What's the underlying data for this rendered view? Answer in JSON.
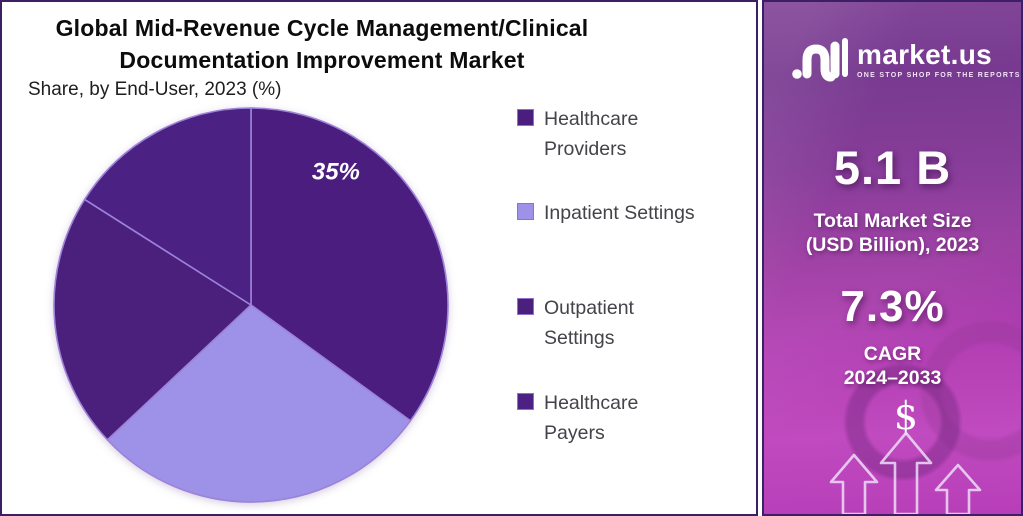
{
  "header": {
    "title_line1": "Global Mid-Revenue Cycle Management/Clinical",
    "title_line2": "Documentation Improvement Market",
    "subtitle": "Share, by End-User, 2023 (%)"
  },
  "chart_data": {
    "type": "pie",
    "title": "Global Mid-Revenue Cycle Management/Clinical Documentation Improvement Market Share, by End-User, 2023 (%)",
    "unit": "%",
    "direction": "clockwise",
    "start_angle_deg": 0,
    "legend_position": "right",
    "divider_color": "#9c82d8",
    "swatch_border": "#8f6fd0",
    "label_color": "#ffffff",
    "slices": [
      {
        "name": "Healthcare Providers",
        "legend_lines": [
          "Healthcare",
          "Providers"
        ],
        "value": 35,
        "label": "35%",
        "color": "#4a1d7e"
      },
      {
        "name": "Inpatient Settings",
        "legend_lines": [
          "Inpatient Settings"
        ],
        "value": 28,
        "label": null,
        "color": "#9d92e8"
      },
      {
        "name": "Outpatient Settings",
        "legend_lines": [
          "Outpatient",
          "Settings"
        ],
        "value": 21,
        "label": null,
        "color": "#4b1f7c"
      },
      {
        "name": "Healthcare Payers",
        "legend_lines": [
          "Healthcare",
          "Payers"
        ],
        "value": 16,
        "label": null,
        "color": "#4c2184"
      }
    ]
  },
  "sidebar": {
    "brand": {
      "name": "market.us",
      "tagline": "ONE STOP SHOP FOR THE REPORTS"
    },
    "market_size": {
      "value": "5.1 B",
      "caption_line1": "Total Market Size",
      "caption_line2": "(USD Billion), 2023"
    },
    "cagr": {
      "value": "7.3%",
      "caption_line1": "CAGR",
      "caption_line2": "2024–2033"
    },
    "dollar_symbol": "$"
  }
}
